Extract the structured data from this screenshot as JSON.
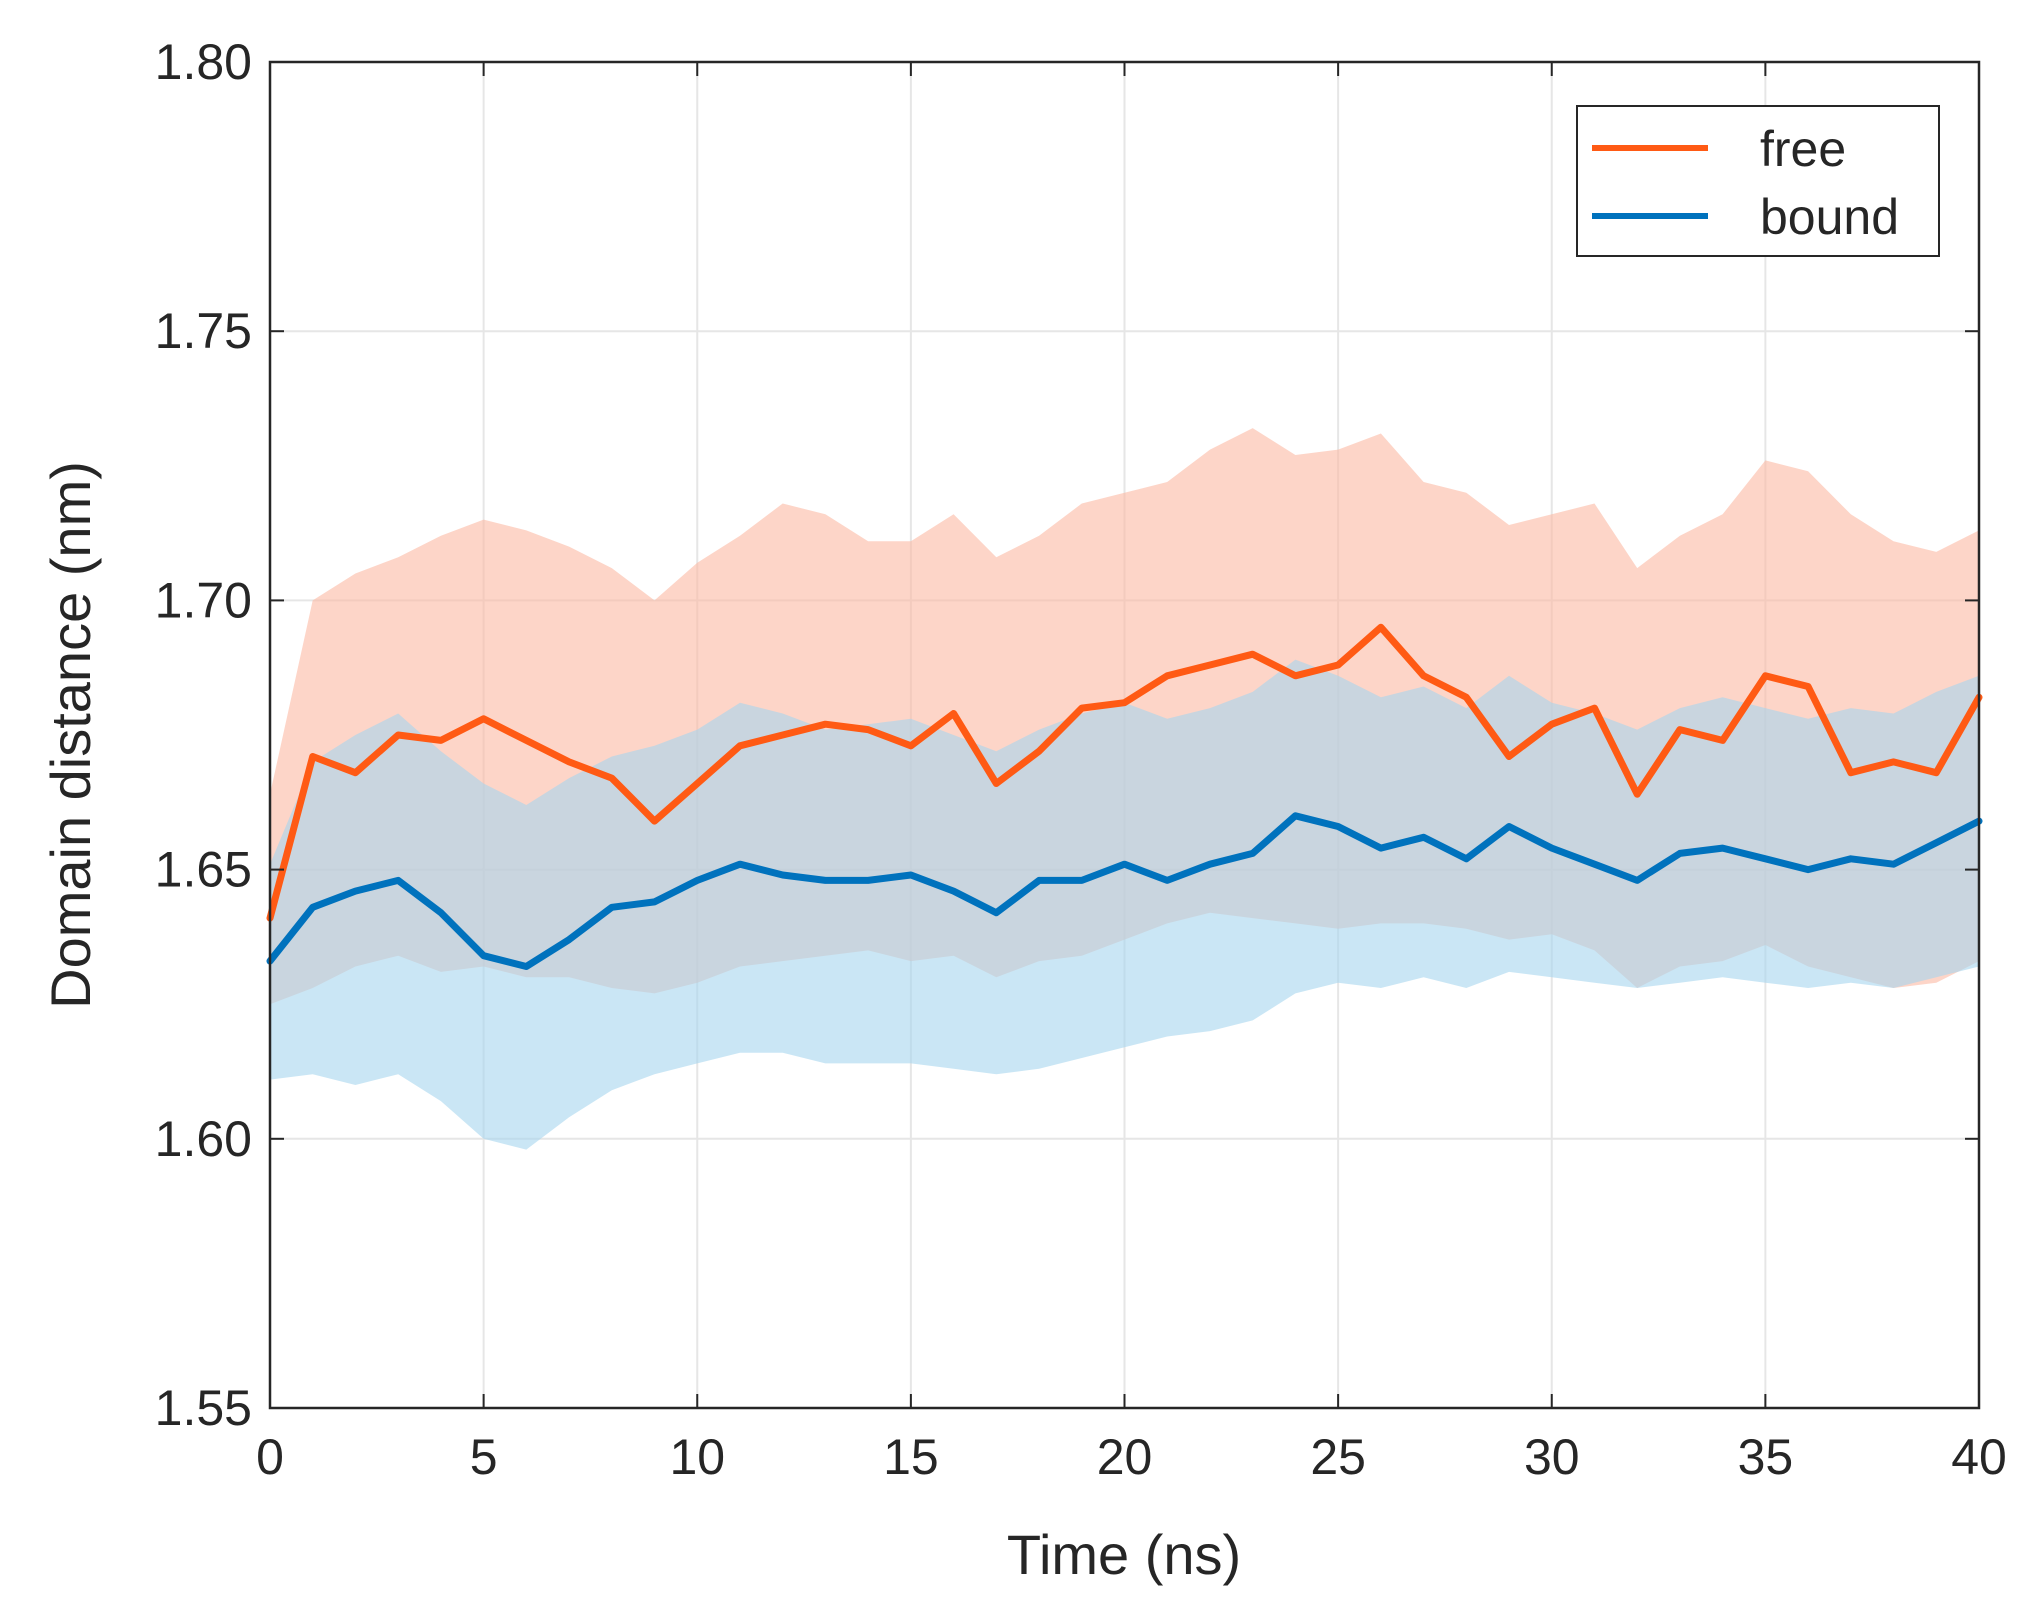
{
  "chart_data": {
    "type": "line",
    "title": "",
    "xlabel": "Time (ns)",
    "ylabel": "Domain distance (nm)",
    "xlim": [
      0,
      40
    ],
    "ylim": [
      1.55,
      1.8
    ],
    "grid": true,
    "legend_position": "top-right",
    "x_ticks": [
      0,
      5,
      10,
      15,
      20,
      25,
      30,
      35,
      40
    ],
    "x_tick_labels": [
      "0",
      "5",
      "10",
      "15",
      "20",
      "25",
      "30",
      "35",
      "40"
    ],
    "y_ticks": [
      1.55,
      1.6,
      1.65,
      1.7,
      1.75,
      1.8
    ],
    "y_tick_labels": [
      "1.55",
      "1.60",
      "1.65",
      "1.70",
      "1.75",
      "1.80"
    ],
    "x": [
      0,
      1,
      2,
      3,
      4,
      5,
      6,
      7,
      8,
      9,
      10,
      11,
      12,
      13,
      14,
      15,
      16,
      17,
      18,
      19,
      20,
      21,
      22,
      23,
      24,
      25,
      26,
      27,
      28,
      29,
      30,
      31,
      32,
      33,
      34,
      35,
      36,
      37,
      38,
      39,
      40
    ],
    "series": [
      {
        "name": "free",
        "color": "#ff5a14",
        "band_color": "#fcb9a3",
        "values": [
          1.641,
          1.671,
          1.668,
          1.675,
          1.674,
          1.678,
          1.674,
          1.67,
          1.667,
          1.659,
          1.666,
          1.673,
          1.675,
          1.677,
          1.676,
          1.673,
          1.679,
          1.666,
          1.672,
          1.68,
          1.681,
          1.686,
          1.688,
          1.69,
          1.686,
          1.688,
          1.695,
          1.686,
          1.682,
          1.671,
          1.677,
          1.68,
          1.664,
          1.676,
          1.674,
          1.686,
          1.684,
          1.668,
          1.67,
          1.668,
          1.682
        ],
        "lower": [
          1.625,
          1.628,
          1.632,
          1.634,
          1.631,
          1.632,
          1.63,
          1.63,
          1.628,
          1.627,
          1.629,
          1.632,
          1.633,
          1.634,
          1.635,
          1.633,
          1.634,
          1.63,
          1.633,
          1.634,
          1.637,
          1.64,
          1.642,
          1.641,
          1.64,
          1.639,
          1.64,
          1.64,
          1.639,
          1.637,
          1.638,
          1.635,
          1.628,
          1.632,
          1.633,
          1.636,
          1.632,
          1.63,
          1.628,
          1.629,
          1.633
        ],
        "upper": [
          1.664,
          1.7,
          1.705,
          1.708,
          1.712,
          1.715,
          1.713,
          1.71,
          1.706,
          1.7,
          1.707,
          1.712,
          1.718,
          1.716,
          1.711,
          1.711,
          1.716,
          1.708,
          1.712,
          1.718,
          1.72,
          1.722,
          1.728,
          1.732,
          1.727,
          1.728,
          1.731,
          1.722,
          1.72,
          1.714,
          1.716,
          1.718,
          1.706,
          1.712,
          1.716,
          1.726,
          1.724,
          1.716,
          1.711,
          1.709,
          1.713
        ]
      },
      {
        "name": "bound",
        "color": "#0072bd",
        "band_color": "#a6d5ef",
        "values": [
          1.633,
          1.643,
          1.646,
          1.648,
          1.642,
          1.634,
          1.632,
          1.637,
          1.643,
          1.644,
          1.648,
          1.651,
          1.649,
          1.648,
          1.648,
          1.649,
          1.646,
          1.642,
          1.648,
          1.648,
          1.651,
          1.648,
          1.651,
          1.653,
          1.66,
          1.658,
          1.654,
          1.656,
          1.652,
          1.658,
          1.654,
          1.651,
          1.648,
          1.653,
          1.654,
          1.652,
          1.65,
          1.652,
          1.651,
          1.655,
          1.659
        ],
        "lower": [
          1.611,
          1.612,
          1.61,
          1.612,
          1.607,
          1.6,
          1.598,
          1.604,
          1.609,
          1.612,
          1.614,
          1.616,
          1.616,
          1.614,
          1.614,
          1.614,
          1.613,
          1.612,
          1.613,
          1.615,
          1.617,
          1.619,
          1.62,
          1.622,
          1.627,
          1.629,
          1.628,
          1.63,
          1.628,
          1.631,
          1.63,
          1.629,
          1.628,
          1.629,
          1.63,
          1.629,
          1.628,
          1.629,
          1.628,
          1.63,
          1.632
        ],
        "upper": [
          1.651,
          1.67,
          1.675,
          1.679,
          1.672,
          1.666,
          1.662,
          1.667,
          1.671,
          1.673,
          1.676,
          1.681,
          1.679,
          1.676,
          1.677,
          1.678,
          1.675,
          1.672,
          1.676,
          1.679,
          1.681,
          1.678,
          1.68,
          1.683,
          1.689,
          1.686,
          1.682,
          1.684,
          1.68,
          1.686,
          1.681,
          1.679,
          1.676,
          1.68,
          1.682,
          1.68,
          1.678,
          1.68,
          1.679,
          1.683,
          1.686
        ]
      }
    ]
  }
}
